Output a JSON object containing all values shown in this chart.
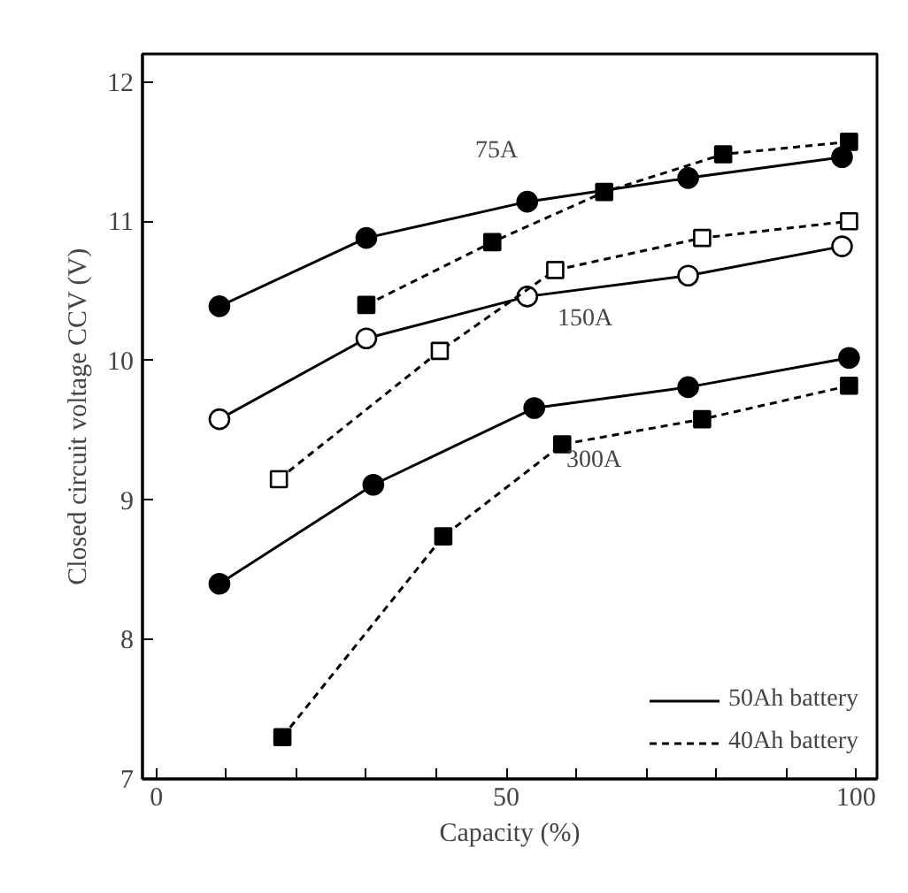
{
  "chart_data": {
    "type": "line",
    "xlabel": "Capacity (%)",
    "ylabel": "Closed circuit voltage CCV (V)",
    "xlim": [
      -2,
      103
    ],
    "ylim": [
      7,
      12.2
    ],
    "xticks": [
      0,
      {
        "value": 10,
        "label": null
      },
      {
        "value": 20,
        "label": null
      },
      {
        "value": 30,
        "label": null
      },
      {
        "value": 40,
        "label": null
      },
      50,
      {
        "value": 60,
        "label": null
      },
      {
        "value": 70,
        "label": null
      },
      {
        "value": 80,
        "label": null
      },
      {
        "value": 90,
        "label": null
      },
      100
    ],
    "yticks": [
      7,
      8,
      9,
      10,
      11,
      12
    ],
    "grid": false,
    "legend": "bottom right",
    "series": [
      {
        "name": "50Ah battery",
        "color": "#000000",
        "marker": "circle",
        "line_style": "solid",
        "x": [
          9,
          30,
          53,
          76,
          98
        ],
        "values": [
          10.39,
          10.88,
          11.14,
          11.31,
          11.46
        ]
      },
      {
        "name": "40Ah battery",
        "color": "#000000",
        "marker": "square",
        "line_style": "dashed",
        "x": [
          30,
          48,
          64,
          81,
          99
        ],
        "values": [
          10.4,
          10.85,
          11.21,
          11.48,
          11.57
        ]
      },
      {
        "color": "#000000",
        "marker": "circle",
        "line_style": "solid",
        "x": [
          9,
          30,
          53,
          76,
          98
        ],
        "values": [
          9.58,
          10.16,
          10.46,
          10.61,
          10.82
        ]
      },
      {
        "color": "#000000",
        "marker": "square",
        "line_style": "dashed",
        "x": [
          17.5,
          40.5,
          57,
          78,
          99
        ],
        "values": [
          9.15,
          10.07,
          10.65,
          10.88,
          11.0
        ]
      },
      {
        "color": "#000000",
        "marker": "circle",
        "line_style": "solid",
        "x": [
          9,
          31,
          54,
          76,
          99
        ],
        "values": [
          8.4,
          9.11,
          9.66,
          9.81,
          10.02
        ]
      },
      {
        "color": "#000000",
        "marker": "square",
        "line_style": "dashed",
        "x": [
          18,
          41,
          58,
          78,
          99
        ],
        "values": [
          7.3,
          8.74,
          9.4,
          9.58,
          9.82
        ]
      }
    ],
    "annotations": [
      "75A",
      "150A",
      "300A"
    ]
  }
}
